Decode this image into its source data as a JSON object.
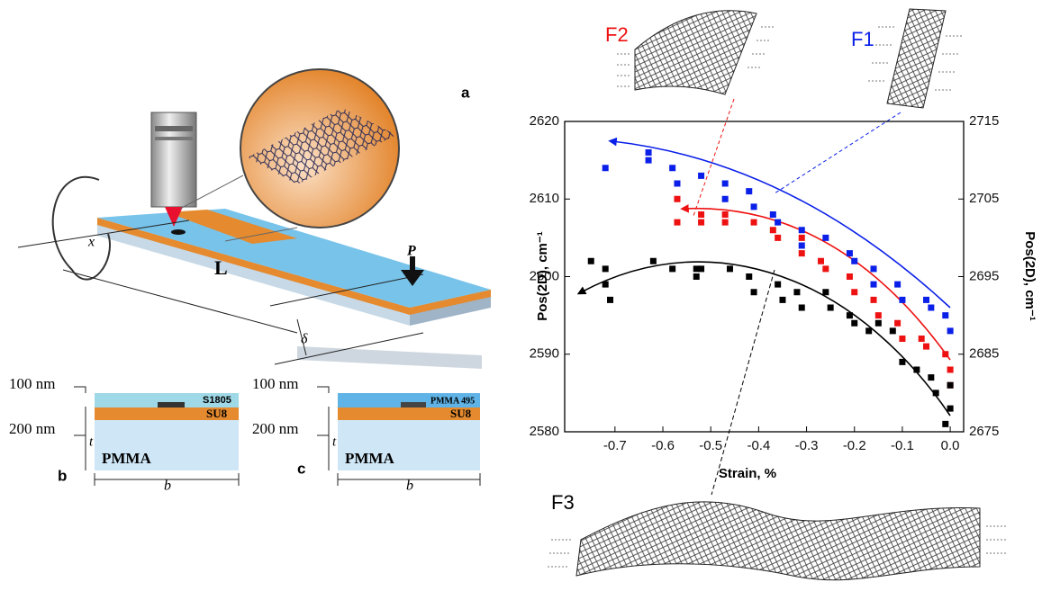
{
  "figure": {
    "panel_a": {
      "label": "a",
      "length": "L",
      "load": "P",
      "position": "x",
      "deflection": "δ"
    },
    "panel_b": {
      "label": "b",
      "dim_top": "100 nm",
      "dim_mid": "200 nm",
      "thickness": "t",
      "width": "b",
      "top_layer": "S1805",
      "middle_layer": "SU8",
      "bottom_layer": "PMMA"
    },
    "panel_c": {
      "label": "c",
      "dim_top": "100 nm",
      "dim_mid": "200 nm",
      "thickness": "t",
      "width": "b",
      "top_layer": "PMMA 495",
      "middle_layer": "SU8",
      "bottom_layer": "PMMA"
    },
    "insets": {
      "f1": "F1",
      "f2": "F2",
      "f3": "F3"
    }
  },
  "chart_data": {
    "type": "scatter",
    "x_label": "Strain, %",
    "y_label": "Pos(2D), cm⁻¹",
    "y2_label": "Pos(2D), cm⁻¹",
    "xlim": [
      -0.805,
      0.028
    ],
    "xticks": [
      -0.7,
      -0.6,
      -0.5,
      -0.4,
      -0.3,
      -0.2,
      -0.1,
      {
        "value": 0,
        "label": "0.0"
      }
    ],
    "ylim": [
      2580,
      2620
    ],
    "yticks": [
      2580,
      2590,
      2600,
      2610,
      2620
    ],
    "y2lim": [
      2675,
      2715
    ],
    "y2ticks": [
      2675,
      2685,
      2695,
      2705,
      2715
    ],
    "series": [
      {
        "color": "#0a1fe8",
        "x": [
          -0.72,
          -0.63,
          -0.63,
          -0.58,
          -0.57,
          -0.52,
          -0.47,
          -0.47,
          -0.42,
          -0.41,
          -0.37,
          -0.36,
          -0.31,
          -0.31,
          -0.26,
          -0.21,
          -0.2,
          -0.16,
          -0.16,
          -0.11,
          -0.1,
          -0.05,
          -0.04,
          -0.01,
          0.0
        ],
        "values": [
          2614,
          2616,
          2615,
          2614,
          2612,
          2613,
          2612,
          2610,
          2611,
          2609,
          2608,
          2607,
          2606,
          2604,
          2605,
          2603,
          2602,
          2601,
          2599,
          2599,
          2597,
          2597,
          2596,
          2595,
          2593
        ]
      },
      {
        "color": "#ee1111",
        "x": [
          -0.57,
          -0.57,
          -0.52,
          -0.52,
          -0.47,
          -0.47,
          -0.41,
          -0.37,
          -0.36,
          -0.31,
          -0.31,
          -0.27,
          -0.26,
          -0.21,
          -0.2,
          -0.16,
          -0.15,
          -0.11,
          -0.1,
          -0.06,
          -0.05,
          -0.01,
          0.0,
          0.0
        ],
        "values": [
          2610,
          2607,
          2608,
          2607,
          2608,
          2607,
          2607,
          2606,
          2605,
          2605,
          2603,
          2602,
          2601,
          2600,
          2598,
          2597,
          2595,
          2594,
          2592,
          2592,
          2591,
          2590,
          2588,
          2586
        ]
      },
      {
        "color": "#000000",
        "x": [
          -0.75,
          -0.72,
          -0.72,
          -0.71,
          -0.62,
          -0.58,
          -0.53,
          -0.53,
          -0.52,
          -0.46,
          -0.42,
          -0.41,
          -0.36,
          -0.35,
          -0.32,
          -0.31,
          -0.26,
          -0.25,
          -0.21,
          -0.2,
          -0.17,
          -0.15,
          -0.12,
          -0.1,
          -0.07,
          -0.04,
          -0.03,
          -0.01,
          0.0,
          0.0
        ],
        "values": [
          2602,
          2601,
          2599,
          2597,
          2602,
          2601,
          2601,
          2600,
          2601,
          2601,
          2600,
          2598,
          2599,
          2597,
          2598,
          2596,
          2598,
          2596,
          2595,
          2594,
          2593,
          2594,
          2593,
          2589,
          2588,
          2587,
          2585,
          2581,
          2583,
          2586
        ]
      }
    ]
  }
}
